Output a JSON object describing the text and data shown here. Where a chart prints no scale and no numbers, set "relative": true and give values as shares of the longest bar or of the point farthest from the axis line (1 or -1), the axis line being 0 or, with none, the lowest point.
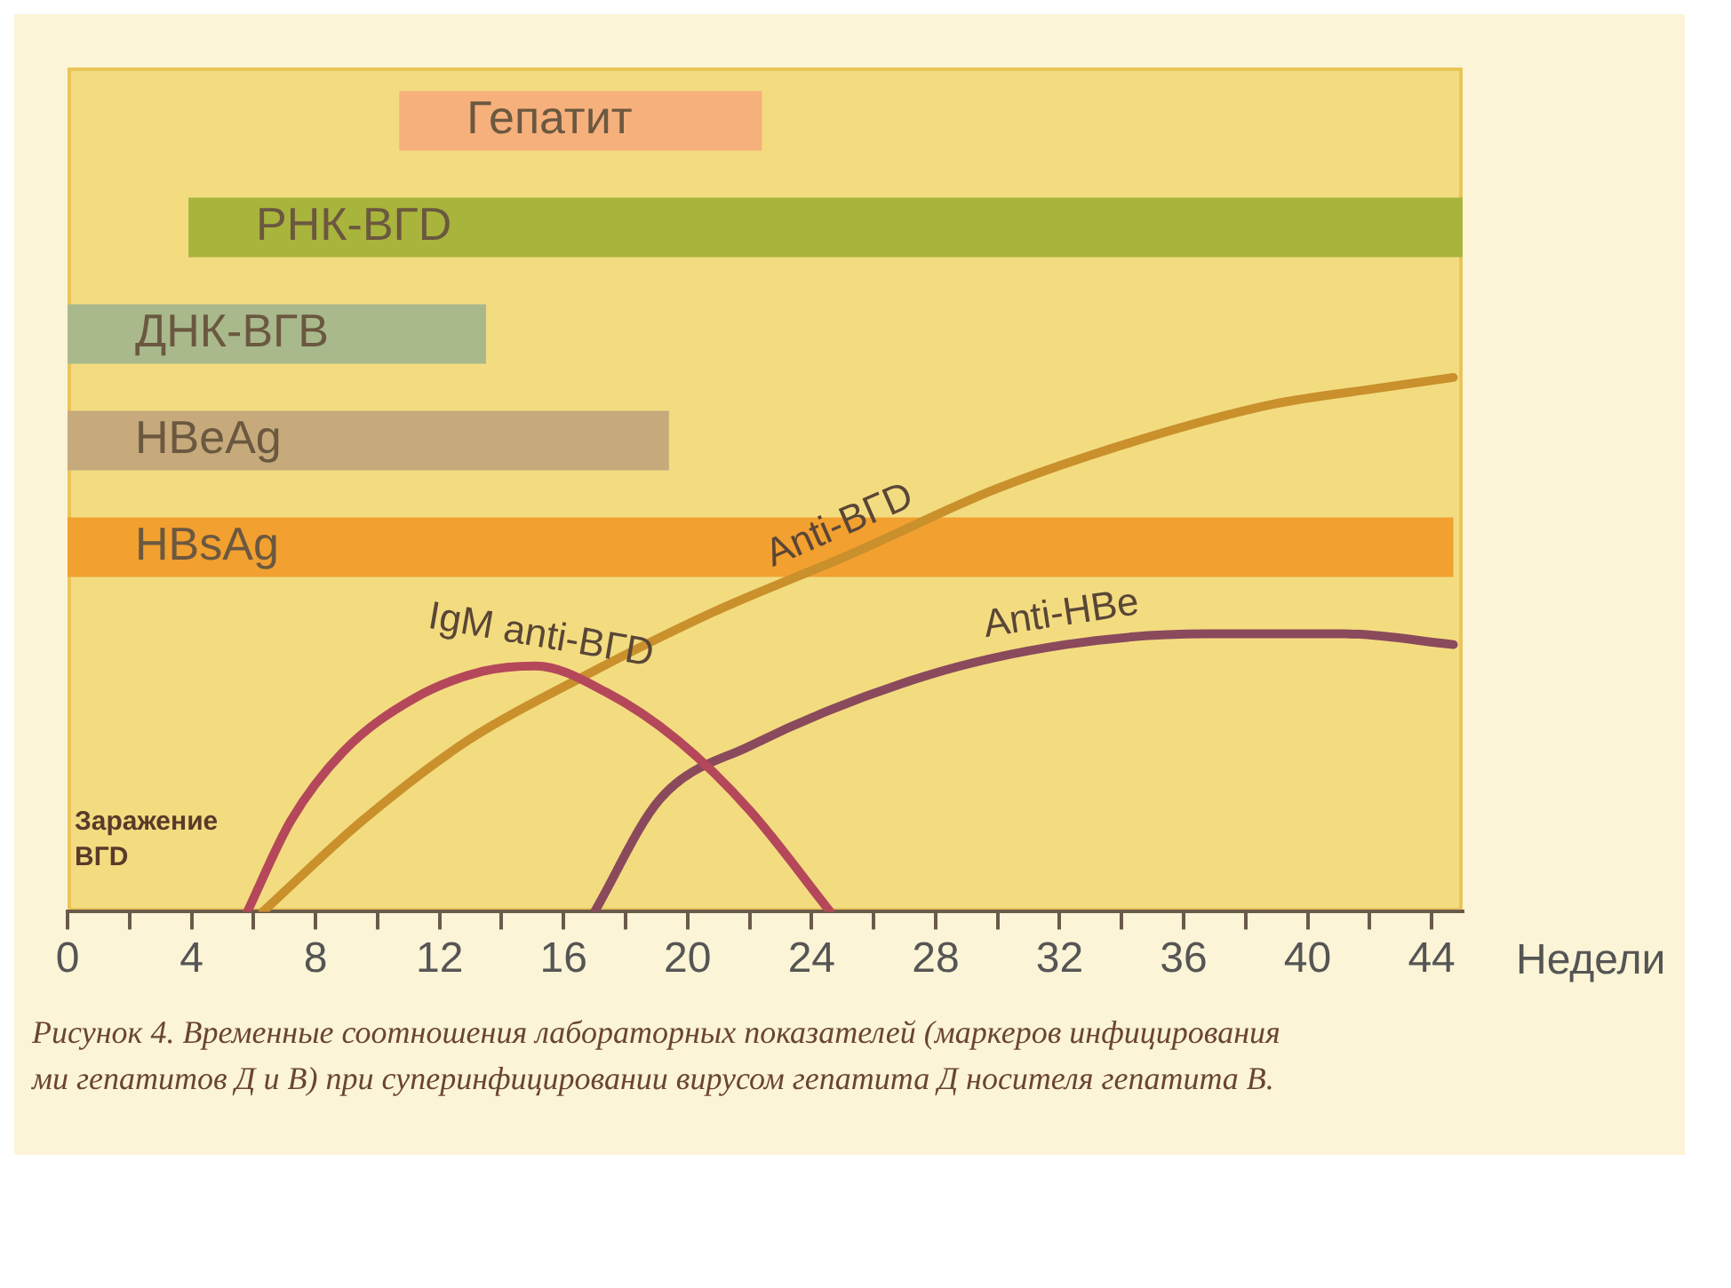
{
  "chart_data": [
    {
      "type": "bar",
      "orientation": "horizontal",
      "categories": [
        "Гепатит",
        "РНК-ВГD",
        "ДНК-ВГВ",
        "HBeAg",
        "HBsAg"
      ],
      "base": [
        10.7,
        3.9,
        0,
        0,
        0
      ],
      "values": [
        11.7,
        41.1,
        13.5,
        19.4,
        44.7
      ],
      "colors": [
        "#f6b07c",
        "#a8b43c",
        "#a9b98c",
        "#c6aa7c",
        "#f2a030"
      ],
      "xlim": [
        0,
        45
      ],
      "tick_labels": false
    },
    {
      "type": "line",
      "relative": true,
      "xlim": [
        0,
        45
      ],
      "xlabel": "Недели",
      "xticks": [
        0,
        {
          "value": 2,
          "label": null
        },
        4,
        {
          "value": 6,
          "label": null
        },
        8,
        {
          "value": 10,
          "label": null
        },
        12,
        {
          "value": 14,
          "label": null
        },
        16,
        {
          "value": 18,
          "label": null
        },
        20,
        {
          "value": 22,
          "label": null
        },
        24,
        {
          "value": 26,
          "label": null
        },
        28,
        {
          "value": 30,
          "label": null
        },
        32,
        {
          "value": 34,
          "label": null
        },
        36,
        {
          "value": 38,
          "label": null
        },
        40,
        {
          "value": 42,
          "label": null
        },
        44
      ],
      "series": [
        {
          "name": "IgM anti-ВГD",
          "color": "#b4485a",
          "x": [
            5.8,
            7.2,
            8.9,
            11.2,
            13.4,
            15.1,
            17.4,
            19.7,
            22,
            24.6
          ],
          "values": [
            0,
            0.17,
            0.3,
            0.4,
            0.45,
            0.46,
            0.41,
            0.32,
            0.19,
            0
          ]
        },
        {
          "name": "Anti-ВГD",
          "color": "#c9902c",
          "x": [
            6.3,
            9.5,
            12.9,
            16.3,
            20.8,
            25.3,
            29.9,
            34.4,
            38.9,
            42.3,
            44.7
          ],
          "values": [
            0,
            0.17,
            0.32,
            0.43,
            0.56,
            0.67,
            0.79,
            0.88,
            0.95,
            0.98,
            1
          ]
        },
        {
          "name": "Anti-HBe",
          "color": "#8a4a5c",
          "x": [
            17,
            19.1,
            22,
            27.6,
            32.2,
            36.7,
            41.2,
            44.7
          ],
          "values": [
            0,
            0.21,
            0.31,
            0.44,
            0.5,
            0.52,
            0.52,
            0.5
          ]
        }
      ],
      "annotations": [
        "Заражение ВГD",
        "Рисунок 4. Временные соотношения лабораторных показателей (маркеров инфицирования",
        "ми гепатитов Д и В) при суперинфицировании вирусом гепатита Д носителя гепатита В."
      ]
    }
  ]
}
